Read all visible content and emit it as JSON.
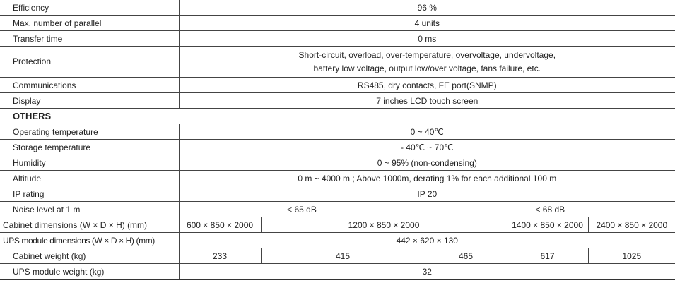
{
  "rows_top": [
    {
      "label": "Efficiency",
      "value": "96 %"
    },
    {
      "label": "Max. number of parallel",
      "value": "4 units"
    },
    {
      "label": "Transfer time",
      "value": "0 ms"
    }
  ],
  "protection": {
    "label": "Protection",
    "line1": "Short-circuit, overload, over-temperature, overvoltage, undervoltage,",
    "line2": "battery low voltage, output low/over voltage, fans failure, etc."
  },
  "rows_mid": [
    {
      "label": "Communications",
      "value": "RS485, dry contacts, FE port(SNMP)"
    },
    {
      "label": "Display",
      "value": "7 inches LCD touch screen"
    }
  ],
  "section": "OTHERS",
  "rows_others": [
    {
      "label": "Operating temperature",
      "value": "0 ~ 40℃"
    },
    {
      "label": "Storage temperature",
      "value": "- 40℃ ~ 70℃"
    },
    {
      "label": "Humidity",
      "value": "0 ~ 95% (non-condensing)"
    },
    {
      "label": "Altitude",
      "value": "0 m ~ 4000 m ; Above 1000m, derating 1% for each additional 100 m"
    },
    {
      "label": "IP rating",
      "value": "IP 20"
    }
  ],
  "noise": {
    "label": "Noise level at 1 m",
    "values": [
      "< 65 dB",
      "< 68 dB"
    ]
  },
  "cabinet_dims": {
    "label": "Cabinet dimensions (W × D × H) (mm)",
    "values": [
      "600 × 850 × 2000",
      "1200 × 850 × 2000",
      "1400 × 850 × 2000",
      "2400 × 850 × 2000"
    ]
  },
  "module_dims": {
    "label": "UPS module dimensions (W × D × H) (mm)",
    "value": "442 × 620 × 130"
  },
  "cabinet_weight": {
    "label": "Cabinet weight (kg)",
    "values": [
      "233",
      "415",
      "465",
      "617",
      "1025"
    ]
  },
  "module_weight": {
    "label": "UPS module weight (kg)",
    "value": "32"
  }
}
